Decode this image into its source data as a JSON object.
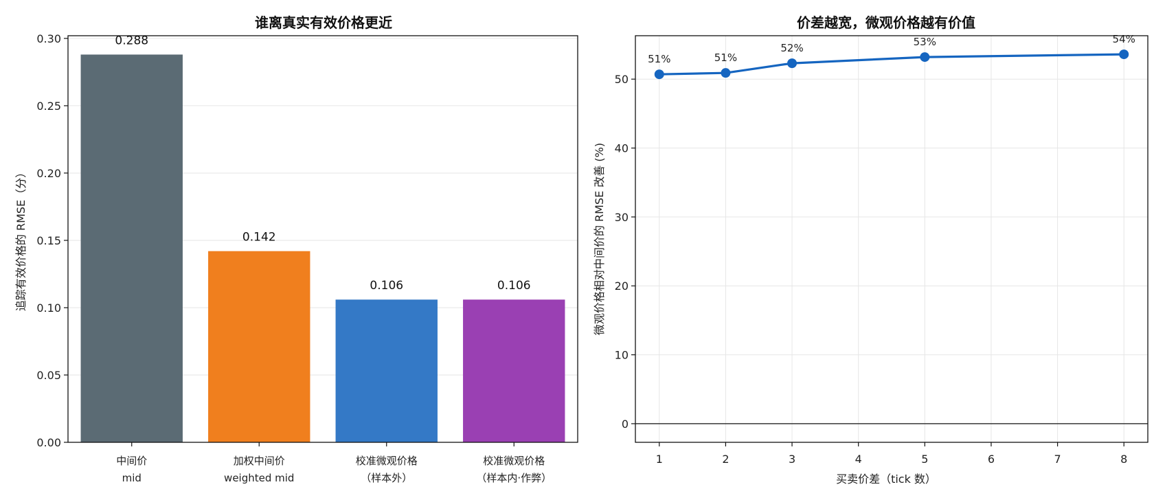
{
  "chart_data": [
    {
      "type": "bar",
      "title": "谁离真实有效价格更近",
      "ylabel": "追踪有效价格的 RMSE（分）",
      "xlabel": "",
      "categories": [
        {
          "line1": "中间价",
          "line2": "mid"
        },
        {
          "line1": "加权中间价",
          "line2": "weighted mid"
        },
        {
          "line1": "校准微观价格",
          "line2": "（样本外）"
        },
        {
          "line1": "校准微观价格",
          "line2": "（样本内·作弊）"
        }
      ],
      "values": [
        0.288,
        0.142,
        0.106,
        0.106
      ],
      "value_labels": [
        "0.288",
        "0.142",
        "0.106",
        "0.106"
      ],
      "colors": [
        "#5b6b74",
        "#f07f1e",
        "#3479c6",
        "#9a40b3"
      ],
      "ylim": [
        0,
        0.302
      ],
      "yticks": [
        0.0,
        0.05,
        0.1,
        0.15,
        0.2,
        0.25,
        0.3
      ],
      "ytick_labels": [
        "0.00",
        "0.05",
        "0.10",
        "0.15",
        "0.20",
        "0.25",
        "0.30"
      ],
      "grid": "y"
    },
    {
      "type": "line",
      "title": "价差越宽，微观价格越有价值",
      "xlabel": "买卖价差（tick 数）",
      "ylabel": "微观价格相对中间价的 RMSE 改善 (%)",
      "x": [
        1,
        2,
        3,
        5,
        8
      ],
      "y": [
        50.7,
        50.9,
        52.3,
        53.2,
        53.6
      ],
      "point_labels": [
        "51%",
        "51%",
        "52%",
        "53%",
        "54%"
      ],
      "color": "#1565c0",
      "xlim": [
        0.64,
        8.36
      ],
      "ylim": [
        -2.7,
        56.3
      ],
      "xticks": [
        1,
        2,
        3,
        4,
        5,
        6,
        7,
        8
      ],
      "yticks": [
        0,
        10,
        20,
        30,
        40,
        50
      ],
      "zero_line": true,
      "grid": "both"
    }
  ]
}
